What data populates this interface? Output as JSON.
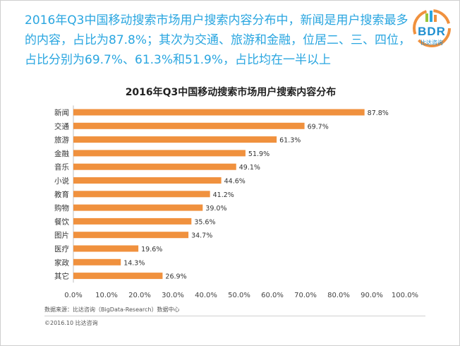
{
  "headline": {
    "line1": "2016年Q3中国移动搜索市场用户搜索内容分布中，新闻是用户搜索最多",
    "line2": "的内容，占比为87.8%；其次为交通、旅游和金融，位居二、三、四位，",
    "line3": "占比分别为69.7%、61.3%和51.9%，占比均在一半以上"
  },
  "logo": {
    "text": "BDR",
    "sub": "比达咨询"
  },
  "chart_data": {
    "type": "bar",
    "orientation": "horizontal",
    "title": "2016年Q3中国移动搜索市场用户搜索内容分布",
    "categories": [
      "新闻",
      "交通",
      "旅游",
      "金融",
      "音乐",
      "小说",
      "教育",
      "购物",
      "餐饮",
      "图片",
      "医疗",
      "家政",
      "其它"
    ],
    "values": [
      87.8,
      69.7,
      61.3,
      51.9,
      49.1,
      44.6,
      41.2,
      39.0,
      35.6,
      34.7,
      19.6,
      14.3,
      26.9
    ],
    "value_labels": [
      "87.8%",
      "69.7%",
      "61.3%",
      "51.9%",
      "49.1%",
      "44.6%",
      "41.2%",
      "39.0%",
      "35.6%",
      "34.7%",
      "19.6%",
      "14.3%",
      "26.9%"
    ],
    "xlim": [
      0,
      100
    ],
    "xticks": [
      "0.0%",
      "10.0%",
      "20.0%",
      "30.0%",
      "40.0%",
      "50.0%",
      "60.0%",
      "70.0%",
      "80.0%",
      "90.0%",
      "100.0%"
    ],
    "xlabel": "",
    "ylabel": "",
    "grid": false,
    "legend": "none",
    "bar_color": "#f0913e"
  },
  "footer": {
    "source": "数据来源：比达咨询（BigData-Research）数据中心",
    "copyright": "©2016.10 比达咨询"
  }
}
